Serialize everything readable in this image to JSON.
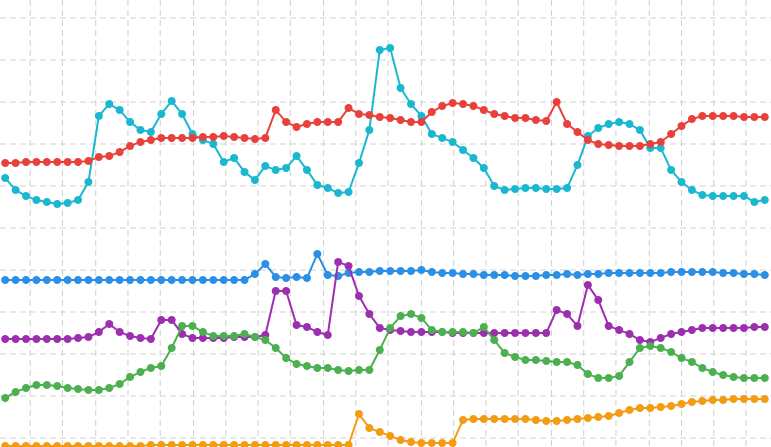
{
  "chart_data": {
    "type": "line",
    "grid": true,
    "x": [
      0,
      1,
      2,
      3,
      4,
      5,
      6,
      7,
      8,
      9,
      10,
      11,
      12,
      13,
      14,
      15,
      16,
      17,
      18,
      19,
      20,
      21,
      22,
      23,
      24,
      25,
      26,
      27,
      28,
      29,
      30,
      31,
      32,
      33,
      34,
      35,
      36,
      37,
      38,
      39,
      40,
      41,
      42,
      43,
      44,
      45,
      46,
      47,
      48,
      49,
      50,
      51,
      52,
      53,
      54,
      55,
      56,
      57,
      58,
      59,
      60,
      61,
      62,
      63,
      64,
      65,
      66,
      67,
      68,
      69,
      70,
      71,
      72,
      73
    ],
    "xlim": [
      -0.5,
      73.6
    ],
    "xticks": [
      2.4,
      5.5,
      8.7,
      11.8,
      14.9,
      18.1,
      21.2,
      24.3,
      27.4,
      30.6,
      33.7,
      36.8,
      40,
      43.1,
      46.2,
      49.3,
      52.5,
      55.6,
      58.7,
      61.9,
      65,
      68.1,
      71.2
    ],
    "ylim": [
      0,
      447
    ],
    "yticks": [
      9,
      51,
      93,
      135,
      177,
      219,
      261,
      303,
      345,
      387,
      429
    ],
    "series": [
      {
        "color": "#1ab8d0",
        "values": [
          269,
          257,
          251,
          247,
          245,
          243,
          244,
          247,
          265,
          331,
          343,
          337,
          325,
          317,
          315,
          333,
          346,
          333,
          313,
          307,
          303,
          285,
          289,
          275,
          267,
          281,
          277,
          279,
          291,
          277,
          262,
          259,
          254,
          255,
          284,
          317,
          397,
          399,
          359,
          343,
          331,
          313,
          309,
          305,
          297,
          289,
          279,
          261,
          257,
          258,
          259,
          259,
          258,
          258,
          259,
          282,
          311,
          319,
          323,
          325,
          323,
          317,
          299,
          299,
          277,
          265,
          257,
          252,
          251,
          251,
          251,
          251,
          245,
          247
        ]
      },
      {
        "color": "#e8413c",
        "values": [
          284,
          284,
          285,
          285,
          285,
          285,
          285,
          285,
          286,
          290,
          291,
          295,
          301,
          305,
          307,
          309,
          309,
          309,
          309,
          310,
          310,
          311,
          310,
          309,
          308,
          309,
          337,
          325,
          320,
          323,
          325,
          325,
          325,
          339,
          333,
          332,
          330,
          329,
          327,
          325,
          325,
          335,
          341,
          344,
          343,
          341,
          337,
          333,
          331,
          329,
          329,
          327,
          326,
          345,
          323,
          315,
          307,
          303,
          302,
          301,
          301,
          301,
          303,
          305,
          313,
          321,
          328,
          331,
          331,
          331,
          331,
          330,
          330,
          330
        ]
      },
      {
        "color": "#2b8fe6",
        "values": [
          167,
          167,
          167,
          167,
          167,
          167,
          167,
          167,
          167,
          167,
          167,
          167,
          167,
          167,
          167,
          167,
          167,
          167,
          167,
          167,
          167,
          167,
          167,
          167,
          173,
          183,
          170,
          169,
          170,
          169,
          193,
          172,
          171,
          174,
          175,
          175,
          176,
          176,
          176,
          176,
          177,
          175,
          174,
          174,
          173,
          173,
          172,
          172,
          172,
          171,
          171,
          171,
          172,
          172,
          173,
          172,
          173,
          173,
          174,
          174,
          174,
          174,
          174,
          174,
          175,
          175,
          175,
          175,
          175,
          174,
          174,
          173,
          173,
          172
        ]
      },
      {
        "color": "#9b2fae",
        "values": [
          108,
          108,
          108,
          108,
          108,
          108,
          108,
          109,
          110,
          115,
          123,
          115,
          111,
          109,
          108,
          127,
          127,
          113,
          109,
          109,
          109,
          109,
          110,
          110,
          110,
          112,
          156,
          156,
          122,
          120,
          115,
          112,
          185,
          181,
          151,
          133,
          119,
          117,
          116,
          115,
          115,
          115,
          115,
          114,
          114,
          114,
          114,
          114,
          114,
          114,
          114,
          114,
          114,
          137,
          133,
          121,
          162,
          147,
          121,
          117,
          113,
          107,
          105,
          109,
          113,
          115,
          117,
          119,
          119,
          119,
          119,
          119,
          120,
          120
        ]
      },
      {
        "color": "#4caf50",
        "values": [
          49,
          55,
          59,
          62,
          62,
          61,
          59,
          58,
          57,
          57,
          59,
          63,
          70,
          75,
          79,
          81,
          99,
          121,
          121,
          115,
          111,
          111,
          111,
          113,
          110,
          107,
          99,
          89,
          83,
          81,
          79,
          79,
          77,
          76,
          77,
          77,
          97,
          119,
          131,
          133,
          129,
          117,
          115,
          115,
          115,
          114,
          120,
          107,
          94,
          90,
          87,
          87,
          86,
          85,
          85,
          82,
          73,
          69,
          69,
          71,
          85,
          99,
          101,
          99,
          95,
          89,
          85,
          79,
          75,
          72,
          70,
          69,
          69,
          69
        ]
      },
      {
        "color": "#f39c12",
        "values": [
          1,
          1,
          1,
          1,
          1,
          1,
          1,
          1,
          1,
          1,
          1,
          1,
          1,
          1,
          2,
          2,
          2,
          2,
          2,
          2,
          2,
          2,
          2,
          2,
          2,
          2,
          2,
          2,
          2,
          2,
          2,
          2,
          2,
          2,
          33,
          19,
          15,
          11,
          7,
          5,
          4,
          4,
          4,
          4,
          27,
          28,
          28,
          28,
          28,
          28,
          28,
          27,
          26,
          26,
          27,
          28,
          29,
          30,
          31,
          34,
          37,
          39,
          39,
          40,
          41,
          43,
          45,
          46,
          47,
          47,
          48,
          48,
          48,
          48
        ]
      }
    ]
  }
}
